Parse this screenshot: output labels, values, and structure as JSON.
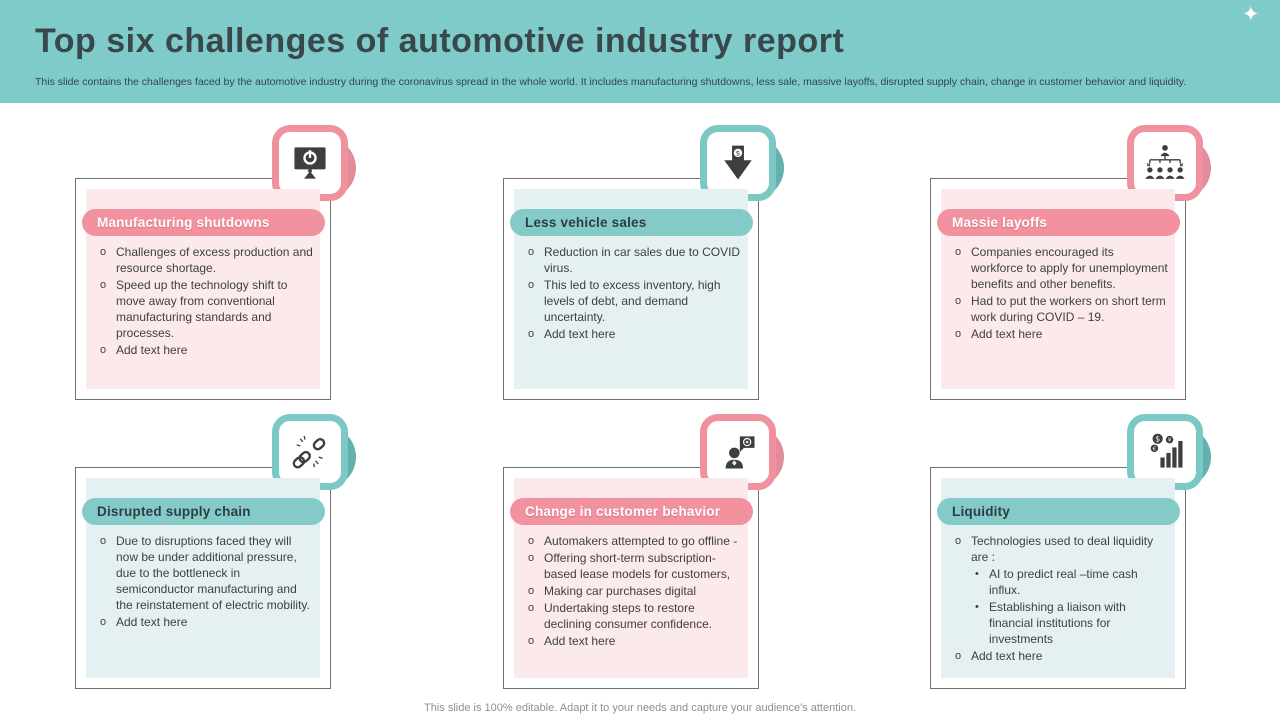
{
  "slide": {
    "title": "Top six challenges of automotive industry report",
    "subtitle": "This slide contains the challenges faced by the automotive industry during the coronavirus spread in the whole world. It includes manufacturing shutdowns, less sale, massive layoffs, disrupted supply chain, change in customer behavior and liquidity.",
    "footer": "This slide is 100% editable. Adapt it to your needs and capture your audience's attention.",
    "sparkle_icon": "✦"
  },
  "colors": {
    "header_band": "#7ecbc9",
    "pink_accent": "#f2929e",
    "pink_fill": "#fce9ec",
    "teal_accent": "#84cbc8",
    "teal_fill": "#e4f0f2",
    "title_text": "#39494b",
    "body_text": "#3f3f3f"
  },
  "bullet_markers": {
    "level1": "o",
    "level2": "•"
  },
  "cards": [
    {
      "title": "Manufacturing shutdowns",
      "accent": "pink",
      "icon": "monitor-power-icon",
      "bullets": [
        {
          "level": 1,
          "text": "Challenges of excess production and resource shortage."
        },
        {
          "level": 1,
          "text": "Speed up the technology shift to move away from conventional manufacturing standards and processes."
        },
        {
          "level": 1,
          "text": "Add text here"
        }
      ]
    },
    {
      "title": "Less vehicle sales",
      "accent": "teal",
      "icon": "down-arrow-dollar-icon",
      "bullets": [
        {
          "level": 1,
          "text": "Reduction in car sales due to COVID virus."
        },
        {
          "level": 1,
          "text": "This led to excess inventory, high levels of debt, and demand uncertainty."
        },
        {
          "level": 1,
          "text": "Add text here"
        }
      ]
    },
    {
      "title": "Massie layoffs",
      "accent": "pink",
      "icon": "org-chart-layoffs-icon",
      "bullets": [
        {
          "level": 1,
          "text": "Companies encouraged its workforce to apply for unemployment benefits and other benefits."
        },
        {
          "level": 1,
          "text": "Had to put the workers on short term work during COVID – 19."
        },
        {
          "level": 1,
          "text": "Add text here"
        }
      ]
    },
    {
      "title": "Disrupted supply chain",
      "accent": "teal",
      "icon": "broken-chain-icon",
      "bullets": [
        {
          "level": 1,
          "text": "Due to disruptions faced they will now be under additional pressure, due to the bottleneck in semiconductor manufacturing and the reinstatement of electric mobility."
        },
        {
          "level": 1,
          "text": "Add text here"
        }
      ]
    },
    {
      "title": "Change in customer behavior",
      "accent": "pink",
      "icon": "customer-speech-icon",
      "bullets": [
        {
          "level": 1,
          "text": "Automakers attempted to go offline -"
        },
        {
          "level": 1,
          "text": "Offering short-term subscription-based lease models for customers,"
        },
        {
          "level": 1,
          "text": "Making car purchases digital"
        },
        {
          "level": 1,
          "text": "Undertaking steps to restore declining consumer confidence."
        },
        {
          "level": 1,
          "text": "Add text here"
        }
      ]
    },
    {
      "title": "Liquidity",
      "accent": "teal",
      "icon": "currency-bar-chart-icon",
      "bullets": [
        {
          "level": 1,
          "text": "Technologies used to deal liquidity are :"
        },
        {
          "level": 2,
          "text": "AI to predict real –time cash influx."
        },
        {
          "level": 2,
          "text": "Establishing a liaison with financial institutions for investments"
        },
        {
          "level": 1,
          "text": "Add text here"
        }
      ]
    }
  ]
}
